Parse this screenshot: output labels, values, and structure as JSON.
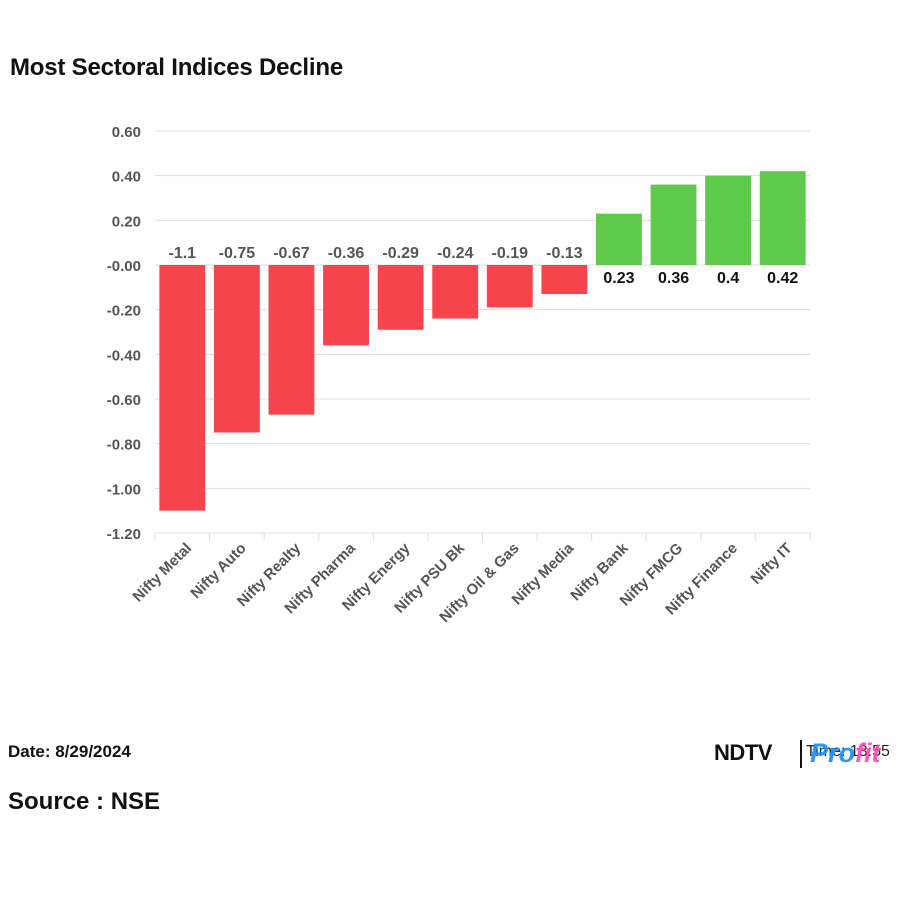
{
  "title": "Most Sectoral Indices Decline",
  "footer": {
    "date": "Date: 8/29/2024",
    "source": "Source : NSE",
    "time": "Time: 13:55",
    "logo_text": "NDTV",
    "logo_profit_a": "Pro",
    "logo_profit_b": "fit"
  },
  "colors": {
    "negative": "#f5444c",
    "positive": "#5ec94a",
    "grid": "#dddddd",
    "axis_text": "#555555",
    "neg_label": "#555555",
    "pos_label": "#111111"
  },
  "chart_data": {
    "type": "bar",
    "title": "Most Sectoral Indices Decline",
    "xlabel": "",
    "ylabel": "",
    "categories": [
      "Nifty Metal",
      "Nifty Auto",
      "Nifty Realty",
      "Nifty Pharma",
      "Nifty Energy",
      "Nifty PSU Bk",
      "Nifty Oil & Gas",
      "Nifty Media",
      "Nifty Bank",
      "Nifty FMCG",
      "Nifty Finance",
      "Nifty IT"
    ],
    "values": [
      -1.1,
      -0.75,
      -0.67,
      -0.36,
      -0.29,
      -0.24,
      -0.19,
      -0.13,
      0.23,
      0.36,
      0.4,
      0.42
    ],
    "value_labels": [
      "-1.1",
      "-0.75",
      "-0.67",
      "-0.36",
      "-0.29",
      "-0.24",
      "-0.19",
      "-0.13",
      "0.23",
      "0.36",
      "0.4",
      "0.42"
    ],
    "ylim": [
      -1.2,
      0.6
    ],
    "yticks": [
      0.6,
      0.4,
      0.2,
      0.0,
      -0.2,
      -0.4,
      -0.6,
      -0.8,
      -1.0,
      -1.2
    ],
    "ytick_labels": [
      "0.60",
      "0.40",
      "0.20",
      "-0.00",
      "-0.20",
      "-0.40",
      "-0.60",
      "-0.80",
      "-1.00",
      "-1.20"
    ],
    "grid": true,
    "legend": "none"
  }
}
